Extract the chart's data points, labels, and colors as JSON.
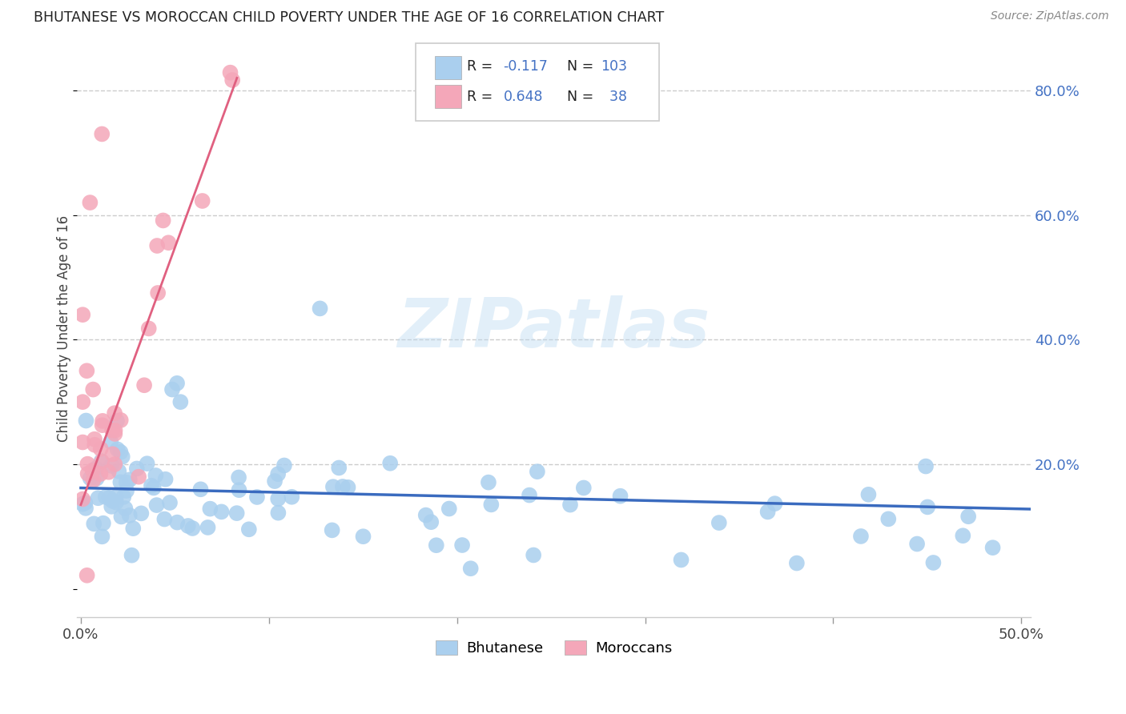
{
  "title": "BHUTANESE VS MOROCCAN CHILD POVERTY UNDER THE AGE OF 16 CORRELATION CHART",
  "source": "Source: ZipAtlas.com",
  "ylabel": "Child Poverty Under the Age of 16",
  "ytick_vals": [
    0.2,
    0.4,
    0.6,
    0.8
  ],
  "ytick_labels": [
    "20.0%",
    "40.0%",
    "60.0%",
    "80.0%"
  ],
  "xmin": -0.002,
  "xmax": 0.505,
  "ymin": -0.045,
  "ymax": 0.88,
  "bhutanese_color": "#aacfee",
  "moroccan_color": "#f4a7b9",
  "bhutanese_line_color": "#3a6bbf",
  "moroccan_line_color": "#e06080",
  "watermark": "ZIPatlas",
  "legend_r_bhutanese": "-0.117",
  "legend_n_bhutanese": "103",
  "legend_r_moroccan": "0.648",
  "legend_n_moroccan": "38",
  "bhut_trend_x0": 0.0,
  "bhut_trend_x1": 0.505,
  "bhut_trend_y0": 0.162,
  "bhut_trend_y1": 0.128,
  "moroc_trend_x0": 0.0,
  "moroc_trend_x1": 0.083,
  "moroc_trend_y0": 0.135,
  "moroc_trend_y1": 0.82
}
